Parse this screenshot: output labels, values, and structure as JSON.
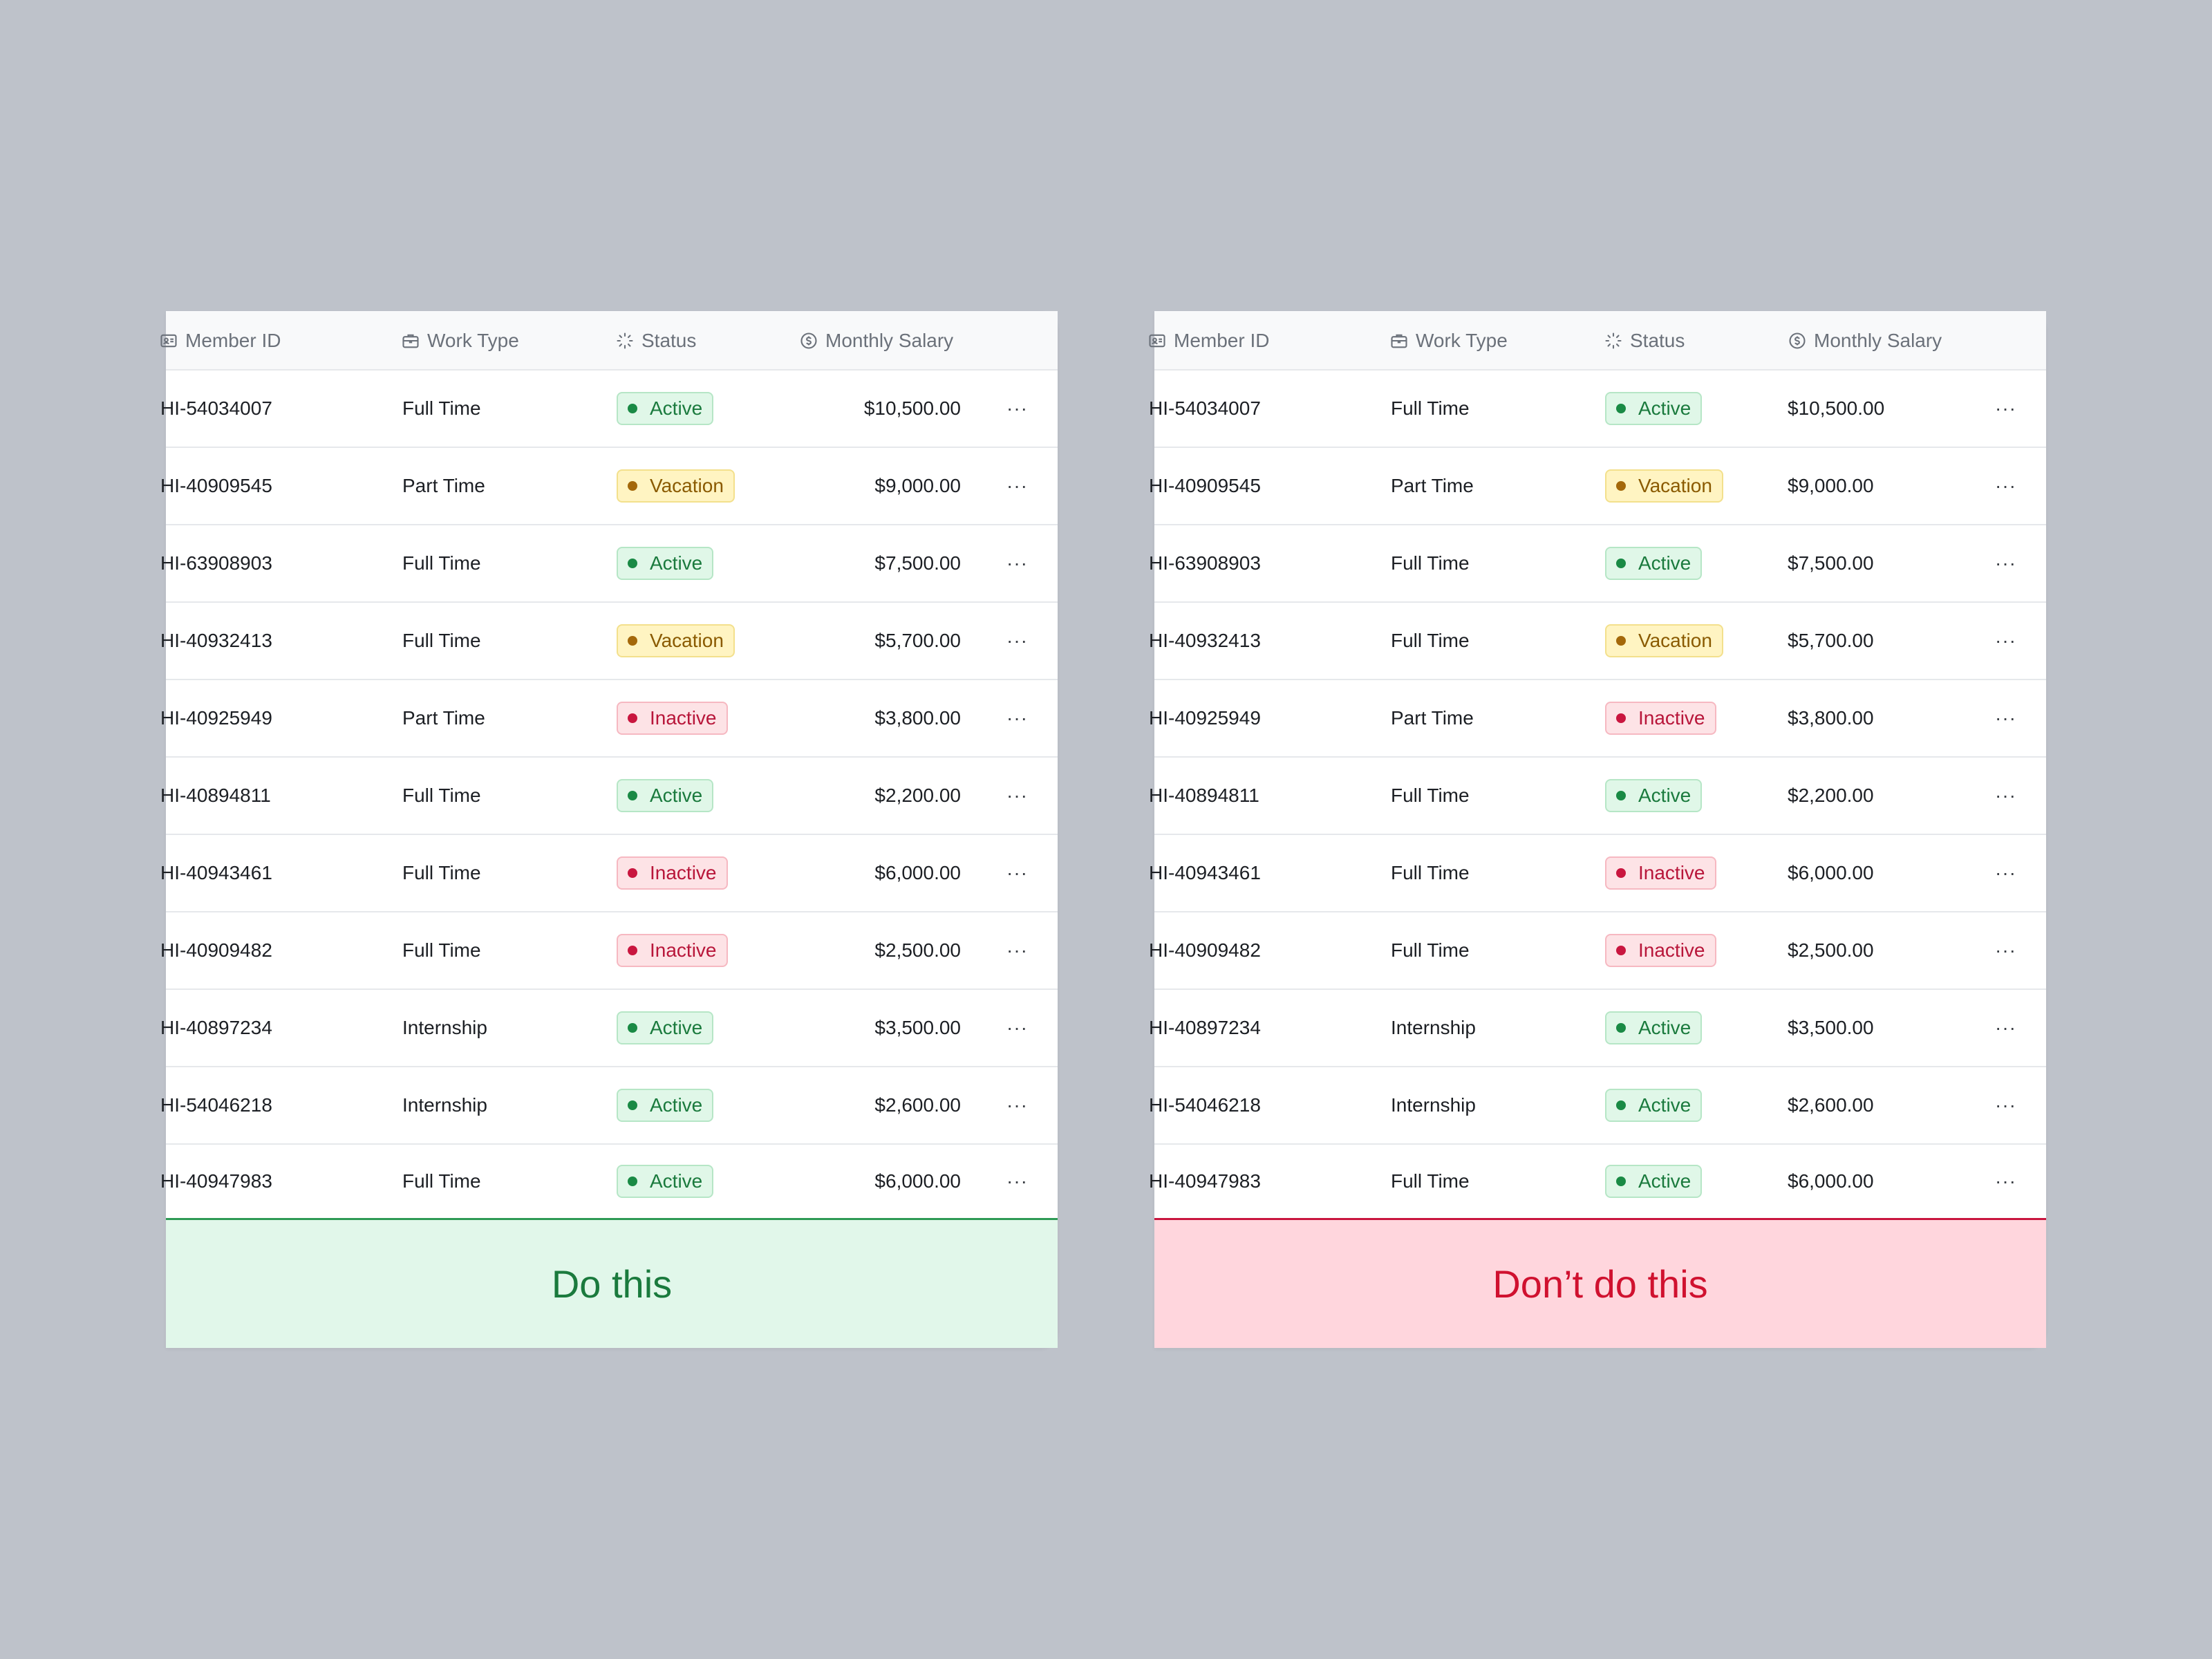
{
  "columns": {
    "member_id": "Member ID",
    "work_type": "Work Type",
    "status": "Status",
    "monthly_salary": "Monthly Salary"
  },
  "icons": {
    "member_id": "id-card-icon",
    "work_type": "briefcase-icon",
    "status": "loader-icon",
    "monthly_salary": "dollar-circle-icon",
    "row_action": "more-horizontal-icon"
  },
  "more_label": "···",
  "rows": [
    {
      "member_id": "HI-54034007",
      "work_type": "Full Time",
      "status": "Active",
      "status_kind": "active",
      "salary": "$10,500.00"
    },
    {
      "member_id": "HI-40909545",
      "work_type": "Part Time",
      "status": "Vacation",
      "status_kind": "vacation",
      "salary": "$9,000.00"
    },
    {
      "member_id": "HI-63908903",
      "work_type": "Full Time",
      "status": "Active",
      "status_kind": "active",
      "salary": "$7,500.00"
    },
    {
      "member_id": "HI-40932413",
      "work_type": "Full Time",
      "status": "Vacation",
      "status_kind": "vacation",
      "salary": "$5,700.00"
    },
    {
      "member_id": "HI-40925949",
      "work_type": "Part Time",
      "status": "Inactive",
      "status_kind": "inactive",
      "salary": "$3,800.00"
    },
    {
      "member_id": "HI-40894811",
      "work_type": "Full Time",
      "status": "Active",
      "status_kind": "active",
      "salary": "$2,200.00"
    },
    {
      "member_id": "HI-40943461",
      "work_type": "Full Time",
      "status": "Inactive",
      "status_kind": "inactive",
      "salary": "$6,000.00"
    },
    {
      "member_id": "HI-40909482",
      "work_type": "Full Time",
      "status": "Inactive",
      "status_kind": "inactive",
      "salary": "$2,500.00"
    },
    {
      "member_id": "HI-40897234",
      "work_type": "Internship",
      "status": "Active",
      "status_kind": "active",
      "salary": "$3,500.00"
    },
    {
      "member_id": "HI-54046218",
      "work_type": "Internship",
      "status": "Active",
      "status_kind": "active",
      "salary": "$2,600.00"
    },
    {
      "member_id": "HI-40947983",
      "work_type": "Full Time",
      "status": "Active",
      "status_kind": "active",
      "salary": "$6,000.00"
    }
  ],
  "cards": {
    "good": {
      "label": "Do this",
      "salary_align": "right"
    },
    "bad": {
      "label": "Don’t do this",
      "salary_align": "left"
    }
  },
  "colors": {
    "background": "#bec2ca",
    "active": "#1a7a3d",
    "vacation": "#8a5a00",
    "inactive": "#b8163a",
    "good_footer_bg": "#e1f7ea",
    "good_footer_text": "#1a7a3d",
    "bad_footer_bg": "#ffd6dd",
    "bad_footer_text": "#d0112f"
  }
}
